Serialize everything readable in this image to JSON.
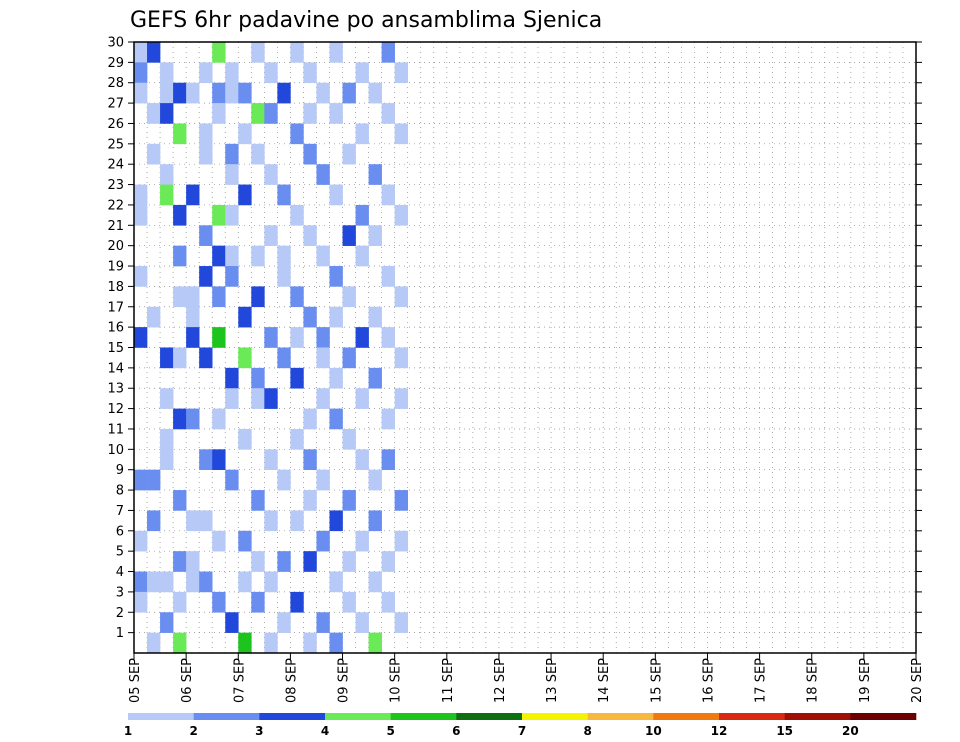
{
  "chart_data": {
    "type": "heatmap",
    "title": "GEFS 6hr padavine po ansamblima Sjenica",
    "xlabel": "",
    "ylabel": "",
    "x_tick_labels": [
      "05 SEP",
      "06 SEP",
      "07 SEP",
      "08 SEP",
      "09 SEP",
      "10 SEP",
      "11 SEP",
      "12 SEP",
      "13 SEP",
      "14 SEP",
      "15 SEP",
      "16 SEP",
      "17 SEP",
      "18 SEP",
      "19 SEP",
      "20 SEP"
    ],
    "y_tick_labels": [
      "1",
      "2",
      "3",
      "4",
      "5",
      "6",
      "7",
      "8",
      "9",
      "10",
      "11",
      "12",
      "13",
      "14",
      "15",
      "16",
      "17",
      "18",
      "19",
      "20",
      "21",
      "22",
      "23",
      "24",
      "25",
      "26",
      "27",
      "28",
      "29",
      "30"
    ],
    "x_steps": 60,
    "y_members": [
      0,
      30
    ],
    "grid": "dotted",
    "colorbar": {
      "position": "bottom",
      "boundaries": [
        "1",
        "2",
        "3",
        "4",
        "5",
        "6",
        "7",
        "8",
        "10",
        "12",
        "15",
        "20"
      ],
      "colors": [
        "#b7c9f6",
        "#6a8ef0",
        "#2148da",
        "#6aea56",
        "#1ec41e",
        "#0f6e12",
        "#f4f400",
        "#f8b840",
        "#f07a0e",
        "#d82a10",
        "#a10e06",
        "#6a0000"
      ]
    },
    "cells": [
      [
        0,
        29,
        0
      ],
      [
        0,
        28,
        1
      ],
      [
        0,
        27,
        0
      ],
      [
        0,
        22,
        0
      ],
      [
        0,
        21,
        0
      ],
      [
        0,
        18,
        0
      ],
      [
        0,
        15,
        2
      ],
      [
        0,
        8,
        1
      ],
      [
        0,
        5,
        0
      ],
      [
        0,
        3,
        1
      ],
      [
        0,
        2,
        0
      ],
      [
        1,
        29,
        2
      ],
      [
        1,
        26,
        0
      ],
      [
        1,
        24,
        0
      ],
      [
        1,
        16,
        0
      ],
      [
        1,
        8,
        1
      ],
      [
        1,
        6,
        1
      ],
      [
        1,
        3,
        0
      ],
      [
        1,
        0,
        0
      ],
      [
        2,
        28,
        0
      ],
      [
        2,
        27,
        0
      ],
      [
        2,
        26,
        2
      ],
      [
        2,
        23,
        0
      ],
      [
        2,
        22,
        3
      ],
      [
        2,
        14,
        2
      ],
      [
        2,
        12,
        0
      ],
      [
        2,
        10,
        0
      ],
      [
        2,
        9,
        0
      ],
      [
        2,
        3,
        0
      ],
      [
        2,
        1,
        1
      ],
      [
        3,
        27,
        2
      ],
      [
        3,
        25,
        3
      ],
      [
        3,
        21,
        2
      ],
      [
        3,
        19,
        1
      ],
      [
        3,
        17,
        0
      ],
      [
        3,
        14,
        0
      ],
      [
        3,
        11,
        2
      ],
      [
        3,
        7,
        1
      ],
      [
        3,
        4,
        1
      ],
      [
        3,
        2,
        0
      ],
      [
        3,
        0,
        3
      ],
      [
        4,
        27,
        0
      ],
      [
        4,
        22,
        2
      ],
      [
        4,
        17,
        0
      ],
      [
        4,
        16,
        0
      ],
      [
        4,
        15,
        2
      ],
      [
        4,
        11,
        1
      ],
      [
        4,
        6,
        0
      ],
      [
        4,
        4,
        0
      ],
      [
        4,
        3,
        0
      ],
      [
        5,
        28,
        0
      ],
      [
        5,
        25,
        0
      ],
      [
        5,
        24,
        0
      ],
      [
        5,
        20,
        1
      ],
      [
        5,
        18,
        2
      ],
      [
        5,
        14,
        2
      ],
      [
        5,
        9,
        1
      ],
      [
        5,
        6,
        0
      ],
      [
        5,
        3,
        1
      ],
      [
        6,
        29,
        3
      ],
      [
        6,
        27,
        1
      ],
      [
        6,
        26,
        0
      ],
      [
        6,
        21,
        3
      ],
      [
        6,
        19,
        2
      ],
      [
        6,
        17,
        1
      ],
      [
        6,
        15,
        4
      ],
      [
        6,
        11,
        0
      ],
      [
        6,
        9,
        2
      ],
      [
        6,
        5,
        0
      ],
      [
        6,
        2,
        1
      ],
      [
        7,
        28,
        0
      ],
      [
        7,
        27,
        0
      ],
      [
        7,
        24,
        1
      ],
      [
        7,
        23,
        0
      ],
      [
        7,
        21,
        0
      ],
      [
        7,
        19,
        0
      ],
      [
        7,
        18,
        1
      ],
      [
        7,
        13,
        2
      ],
      [
        7,
        12,
        0
      ],
      [
        7,
        8,
        1
      ],
      [
        7,
        1,
        2
      ],
      [
        8,
        27,
        1
      ],
      [
        8,
        25,
        0
      ],
      [
        8,
        22,
        2
      ],
      [
        8,
        16,
        2
      ],
      [
        8,
        14,
        3
      ],
      [
        8,
        10,
        0
      ],
      [
        8,
        5,
        1
      ],
      [
        8,
        3,
        0
      ],
      [
        8,
        0,
        4
      ],
      [
        9,
        29,
        0
      ],
      [
        9,
        26,
        3
      ],
      [
        9,
        24,
        0
      ],
      [
        9,
        19,
        0
      ],
      [
        9,
        17,
        2
      ],
      [
        9,
        13,
        1
      ],
      [
        9,
        12,
        0
      ],
      [
        9,
        7,
        1
      ],
      [
        9,
        4,
        0
      ],
      [
        9,
        2,
        1
      ],
      [
        10,
        28,
        0
      ],
      [
        10,
        26,
        1
      ],
      [
        10,
        23,
        0
      ],
      [
        10,
        20,
        0
      ],
      [
        10,
        15,
        1
      ],
      [
        10,
        12,
        2
      ],
      [
        10,
        9,
        0
      ],
      [
        10,
        6,
        0
      ],
      [
        10,
        3,
        0
      ],
      [
        10,
        0,
        0
      ],
      [
        11,
        27,
        2
      ],
      [
        11,
        22,
        1
      ],
      [
        11,
        19,
        0
      ],
      [
        11,
        18,
        0
      ],
      [
        11,
        14,
        1
      ],
      [
        11,
        8,
        0
      ],
      [
        11,
        4,
        1
      ],
      [
        11,
        1,
        0
      ],
      [
        12,
        29,
        0
      ],
      [
        12,
        25,
        1
      ],
      [
        12,
        21,
        0
      ],
      [
        12,
        17,
        1
      ],
      [
        12,
        15,
        0
      ],
      [
        12,
        13,
        2
      ],
      [
        12,
        10,
        0
      ],
      [
        12,
        6,
        0
      ],
      [
        12,
        2,
        2
      ],
      [
        13,
        28,
        0
      ],
      [
        13,
        26,
        0
      ],
      [
        13,
        24,
        1
      ],
      [
        13,
        20,
        0
      ],
      [
        13,
        16,
        1
      ],
      [
        13,
        11,
        0
      ],
      [
        13,
        9,
        1
      ],
      [
        13,
        7,
        0
      ],
      [
        13,
        4,
        2
      ],
      [
        13,
        0,
        0
      ],
      [
        14,
        27,
        0
      ],
      [
        14,
        23,
        1
      ],
      [
        14,
        19,
        0
      ],
      [
        14,
        15,
        1
      ],
      [
        14,
        14,
        0
      ],
      [
        14,
        12,
        0
      ],
      [
        14,
        8,
        0
      ],
      [
        14,
        5,
        1
      ],
      [
        14,
        1,
        1
      ],
      [
        15,
        29,
        0
      ],
      [
        15,
        26,
        0
      ],
      [
        15,
        22,
        0
      ],
      [
        15,
        18,
        1
      ],
      [
        15,
        16,
        0
      ],
      [
        15,
        13,
        0
      ],
      [
        15,
        11,
        1
      ],
      [
        15,
        6,
        2
      ],
      [
        15,
        3,
        0
      ],
      [
        15,
        0,
        1
      ],
      [
        16,
        27,
        1
      ],
      [
        16,
        24,
        0
      ],
      [
        16,
        20,
        2
      ],
      [
        16,
        17,
        0
      ],
      [
        16,
        14,
        1
      ],
      [
        16,
        10,
        0
      ],
      [
        16,
        7,
        1
      ],
      [
        16,
        4,
        0
      ],
      [
        16,
        2,
        0
      ],
      [
        17,
        28,
        0
      ],
      [
        17,
        25,
        0
      ],
      [
        17,
        21,
        1
      ],
      [
        17,
        19,
        0
      ],
      [
        17,
        15,
        2
      ],
      [
        17,
        12,
        0
      ],
      [
        17,
        9,
        0
      ],
      [
        17,
        5,
        0
      ],
      [
        17,
        1,
        0
      ],
      [
        18,
        27,
        0
      ],
      [
        18,
        23,
        1
      ],
      [
        18,
        20,
        0
      ],
      [
        18,
        16,
        0
      ],
      [
        18,
        13,
        1
      ],
      [
        18,
        8,
        0
      ],
      [
        18,
        6,
        1
      ],
      [
        18,
        3,
        0
      ],
      [
        18,
        0,
        3
      ],
      [
        19,
        29,
        1
      ],
      [
        19,
        26,
        0
      ],
      [
        19,
        22,
        0
      ],
      [
        19,
        18,
        0
      ],
      [
        19,
        15,
        0
      ],
      [
        19,
        11,
        0
      ],
      [
        19,
        9,
        1
      ],
      [
        19,
        4,
        0
      ],
      [
        19,
        2,
        0
      ],
      [
        20,
        28,
        0
      ],
      [
        20,
        25,
        0
      ],
      [
        20,
        21,
        0
      ],
      [
        20,
        17,
        0
      ],
      [
        20,
        14,
        0
      ],
      [
        20,
        12,
        0
      ],
      [
        20,
        7,
        1
      ],
      [
        20,
        5,
        0
      ],
      [
        20,
        1,
        0
      ]
    ]
  }
}
